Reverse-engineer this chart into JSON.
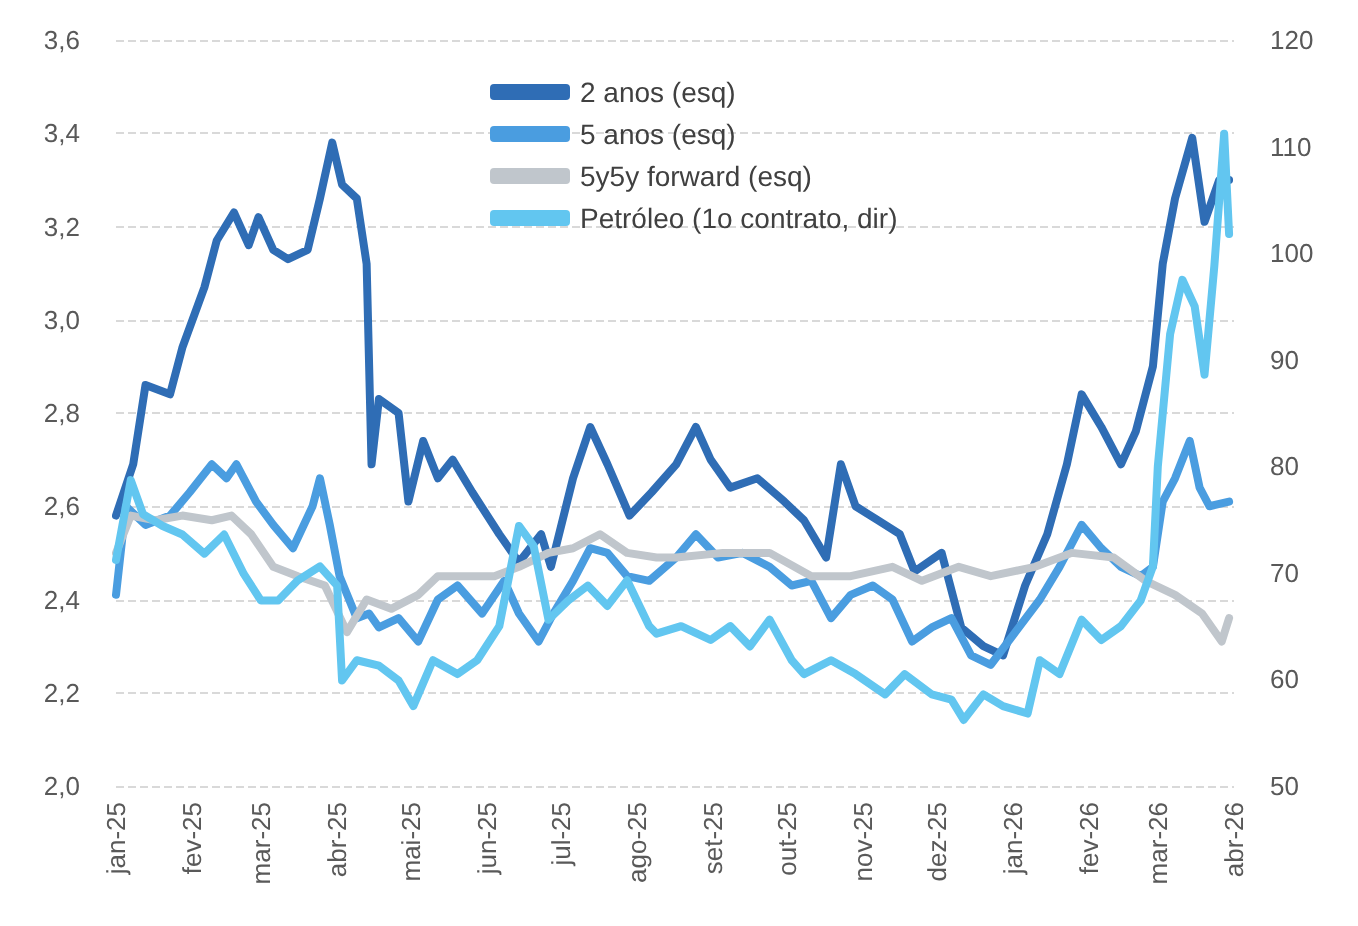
{
  "chart_data": {
    "type": "line",
    "xlim": [
      "2025-01-01",
      "2026-04-01"
    ],
    "xticks": [
      {
        "value": "2025-01-01",
        "label": "jan-25"
      },
      {
        "value": "2025-02-01",
        "label": "fev-25"
      },
      {
        "value": "2025-03-01",
        "label": "mar-25"
      },
      {
        "value": "2025-04-01",
        "label": "abr-25"
      },
      {
        "value": "2025-05-01",
        "label": "mai-25"
      },
      {
        "value": "2025-06-01",
        "label": "jun-25"
      },
      {
        "value": "2025-07-01",
        "label": "jul-25"
      },
      {
        "value": "2025-08-01",
        "label": "ago-25"
      },
      {
        "value": "2025-09-01",
        "label": "set-25"
      },
      {
        "value": "2025-10-01",
        "label": "out-25"
      },
      {
        "value": "2025-11-01",
        "label": "nov-25"
      },
      {
        "value": "2025-12-01",
        "label": "dez-25"
      },
      {
        "value": "2026-01-01",
        "label": "jan-26"
      },
      {
        "value": "2026-02-01",
        "label": "fev-26"
      },
      {
        "value": "2026-03-01",
        "label": "mar-26"
      },
      {
        "value": "2026-04-01",
        "label": "abr-26"
      }
    ],
    "ylim": [
      2.0,
      3.6
    ],
    "yticks": [
      {
        "value": 2.0,
        "label": "2,0"
      },
      {
        "value": 2.2,
        "label": "2,2"
      },
      {
        "value": 2.4,
        "label": "2,4"
      },
      {
        "value": 2.6,
        "label": "2,6"
      },
      {
        "value": 2.8,
        "label": "2,8"
      },
      {
        "value": 3.0,
        "label": "3,0"
      },
      {
        "value": 3.2,
        "label": "3,2"
      },
      {
        "value": 3.4,
        "label": "3,4"
      },
      {
        "value": 3.6,
        "label": "3,6"
      }
    ],
    "y2lim": [
      50,
      120
    ],
    "y2ticks": [
      50,
      60,
      70,
      80,
      90,
      100,
      110,
      120
    ],
    "grid": "y",
    "legend": "top",
    "marker": "none",
    "line_style": "solid",
    "series": [
      {
        "name": "2 anos (esq)",
        "color": "#2f6db5",
        "x": [
          "2025-01-01",
          "2025-01-08",
          "2025-01-13",
          "2025-01-23",
          "2025-01-28",
          "2025-02-06",
          "2025-02-11",
          "2025-02-18",
          "2025-02-24",
          "2025-02-28",
          "2025-03-06",
          "2025-03-12",
          "2025-03-20",
          "2025-03-25",
          "2025-03-30",
          "2025-04-03",
          "2025-04-09",
          "2025-04-13",
          "2025-04-15",
          "2025-04-18",
          "2025-04-26",
          "2025-04-30",
          "2025-05-06",
          "2025-05-12",
          "2025-05-18",
          "2025-05-26",
          "2025-06-06",
          "2025-06-14",
          "2025-06-23",
          "2025-06-27",
          "2025-07-06",
          "2025-07-13",
          "2025-07-20",
          "2025-07-29",
          "2025-08-07",
          "2025-08-17",
          "2025-08-25",
          "2025-08-31",
          "2025-09-08",
          "2025-09-19",
          "2025-09-30",
          "2025-10-08",
          "2025-10-17",
          "2025-10-23",
          "2025-10-29",
          "2025-11-07",
          "2025-11-16",
          "2025-11-22",
          "2025-12-03",
          "2025-12-11",
          "2025-12-20",
          "2025-12-28",
          "2026-01-06",
          "2026-01-15",
          "2026-01-23",
          "2026-01-29",
          "2026-02-06",
          "2026-02-14",
          "2026-02-20",
          "2026-02-27",
          "2026-03-03",
          "2026-03-08",
          "2026-03-15",
          "2026-03-20",
          "2026-03-26",
          "2026-03-30"
        ],
        "values": [
          2.58,
          2.69,
          2.86,
          2.84,
          2.94,
          3.07,
          3.17,
          3.23,
          3.16,
          3.22,
          3.15,
          3.13,
          3.15,
          3.26,
          3.38,
          3.29,
          3.26,
          3.12,
          2.69,
          2.83,
          2.8,
          2.61,
          2.74,
          2.66,
          2.7,
          2.63,
          2.54,
          2.48,
          2.54,
          2.47,
          2.66,
          2.77,
          2.69,
          2.58,
          2.63,
          2.69,
          2.77,
          2.7,
          2.64,
          2.66,
          2.61,
          2.57,
          2.49,
          2.69,
          2.6,
          2.57,
          2.54,
          2.46,
          2.5,
          2.34,
          2.3,
          2.28,
          2.43,
          2.54,
          2.69,
          2.84,
          2.77,
          2.69,
          2.76,
          2.9,
          3.12,
          3.26,
          3.39,
          3.21,
          3.3,
          3.3
        ]
      },
      {
        "name": "5 anos (esq)",
        "color": "#4a9de0",
        "x": [
          "2025-01-01",
          "2025-01-05",
          "2025-01-13",
          "2025-01-23",
          "2025-01-31",
          "2025-02-09",
          "2025-02-15",
          "2025-02-19",
          "2025-02-27",
          "2025-03-06",
          "2025-03-14",
          "2025-03-22",
          "2025-03-25",
          "2025-03-29",
          "2025-04-02",
          "2025-04-09",
          "2025-04-14",
          "2025-04-18",
          "2025-04-26",
          "2025-05-04",
          "2025-05-12",
          "2025-05-20",
          "2025-05-30",
          "2025-06-08",
          "2025-06-14",
          "2025-06-22",
          "2025-06-28",
          "2025-07-06",
          "2025-07-13",
          "2025-07-20",
          "2025-07-28",
          "2025-08-06",
          "2025-08-17",
          "2025-08-25",
          "2025-09-03",
          "2025-09-13",
          "2025-09-24",
          "2025-10-03",
          "2025-10-11",
          "2025-10-19",
          "2025-10-27",
          "2025-11-05",
          "2025-11-13",
          "2025-11-21",
          "2025-11-29",
          "2025-12-07",
          "2025-12-15",
          "2025-12-23",
          "2026-01-02",
          "2026-01-12",
          "2026-01-20",
          "2026-01-29",
          "2026-02-06",
          "2026-02-14",
          "2026-02-22",
          "2026-02-27",
          "2026-03-03",
          "2026-03-08",
          "2026-03-14",
          "2026-03-18",
          "2026-03-22",
          "2026-03-30"
        ],
        "values": [
          2.41,
          2.6,
          2.56,
          2.58,
          2.63,
          2.69,
          2.66,
          2.69,
          2.61,
          2.56,
          2.51,
          2.6,
          2.66,
          2.56,
          2.45,
          2.36,
          2.37,
          2.34,
          2.36,
          2.31,
          2.4,
          2.43,
          2.37,
          2.44,
          2.37,
          2.31,
          2.37,
          2.44,
          2.51,
          2.5,
          2.45,
          2.44,
          2.49,
          2.54,
          2.49,
          2.5,
          2.47,
          2.43,
          2.44,
          2.36,
          2.41,
          2.43,
          2.4,
          2.31,
          2.34,
          2.36,
          2.28,
          2.26,
          2.33,
          2.4,
          2.47,
          2.56,
          2.51,
          2.47,
          2.45,
          2.47,
          2.61,
          2.66,
          2.74,
          2.64,
          2.6,
          2.61
        ]
      },
      {
        "name": "5y5y forward (esq)",
        "color": "#c0c6cc",
        "x": [
          "2025-01-01",
          "2025-01-07",
          "2025-01-17",
          "2025-01-28",
          "2025-02-09",
          "2025-02-17",
          "2025-02-25",
          "2025-03-06",
          "2025-03-16",
          "2025-03-27",
          "2025-04-05",
          "2025-04-13",
          "2025-04-23",
          "2025-05-04",
          "2025-05-12",
          "2025-05-23",
          "2025-06-04",
          "2025-06-14",
          "2025-06-26",
          "2025-07-06",
          "2025-07-17",
          "2025-07-28",
          "2025-08-09",
          "2025-08-17",
          "2025-09-05",
          "2025-09-24",
          "2025-10-11",
          "2025-10-27",
          "2025-11-13",
          "2025-11-25",
          "2025-12-10",
          "2025-12-23",
          "2026-01-10",
          "2026-01-25",
          "2026-02-11",
          "2026-02-24",
          "2026-03-08",
          "2026-03-19",
          "2026-03-27",
          "2026-03-30"
        ],
        "values": [
          2.5,
          2.58,
          2.57,
          2.58,
          2.57,
          2.58,
          2.54,
          2.47,
          2.45,
          2.43,
          2.33,
          2.4,
          2.38,
          2.41,
          2.45,
          2.45,
          2.45,
          2.47,
          2.5,
          2.51,
          2.54,
          2.5,
          2.49,
          2.49,
          2.5,
          2.5,
          2.45,
          2.45,
          2.47,
          2.44,
          2.47,
          2.45,
          2.47,
          2.5,
          2.49,
          2.44,
          2.41,
          2.37,
          2.31,
          2.36
        ]
      },
      {
        "name": "Petróleo (1o contrato, dir)",
        "color": "#62c6f0",
        "axis": "y2",
        "x": [
          "2025-01-01",
          "2025-01-07",
          "2025-01-12",
          "2025-01-20",
          "2025-01-28",
          "2025-02-06",
          "2025-02-14",
          "2025-02-22",
          "2025-03-01",
          "2025-03-08",
          "2025-03-16",
          "2025-03-25",
          "2025-04-01",
          "2025-04-03",
          "2025-04-09",
          "2025-04-18",
          "2025-04-26",
          "2025-05-02",
          "2025-05-10",
          "2025-05-20",
          "2025-05-28",
          "2025-06-06",
          "2025-06-14",
          "2025-06-20",
          "2025-06-26",
          "2025-07-04",
          "2025-07-12",
          "2025-07-20",
          "2025-07-28",
          "2025-08-06",
          "2025-08-09",
          "2025-08-19",
          "2025-08-31",
          "2025-09-08",
          "2025-09-16",
          "2025-09-24",
          "2025-10-03",
          "2025-10-08",
          "2025-10-19",
          "2025-10-29",
          "2025-11-10",
          "2025-11-18",
          "2025-11-29",
          "2025-12-07",
          "2025-12-12",
          "2025-12-20",
          "2025-12-28",
          "2026-01-07",
          "2026-01-12",
          "2026-01-20",
          "2026-01-29",
          "2026-02-06",
          "2026-02-14",
          "2026-02-22",
          "2026-02-27",
          "2026-03-01",
          "2026-03-06",
          "2026-03-11",
          "2026-03-16",
          "2026-03-20",
          "2026-03-24",
          "2026-03-28",
          "2026-03-30"
        ],
        "values": [
          71.2,
          78.7,
          75.5,
          74.4,
          73.6,
          71.8,
          73.6,
          69.9,
          67.4,
          67.4,
          69.3,
          70.6,
          68.8,
          59.9,
          61.8,
          61.3,
          59.9,
          57.5,
          61.8,
          60.5,
          61.8,
          65.0,
          74.4,
          72.5,
          65.6,
          67.4,
          68.8,
          66.9,
          69.3,
          65.0,
          64.3,
          65.0,
          63.7,
          65.0,
          63.1,
          65.6,
          61.8,
          60.5,
          61.8,
          60.5,
          58.6,
          60.5,
          58.6,
          58.1,
          56.2,
          58.6,
          57.5,
          56.8,
          61.8,
          60.5,
          65.6,
          63.7,
          65.0,
          67.4,
          70.6,
          80.0,
          92.4,
          97.5,
          95.0,
          88.6,
          98.8,
          111.2,
          101.8
        ]
      }
    ]
  }
}
